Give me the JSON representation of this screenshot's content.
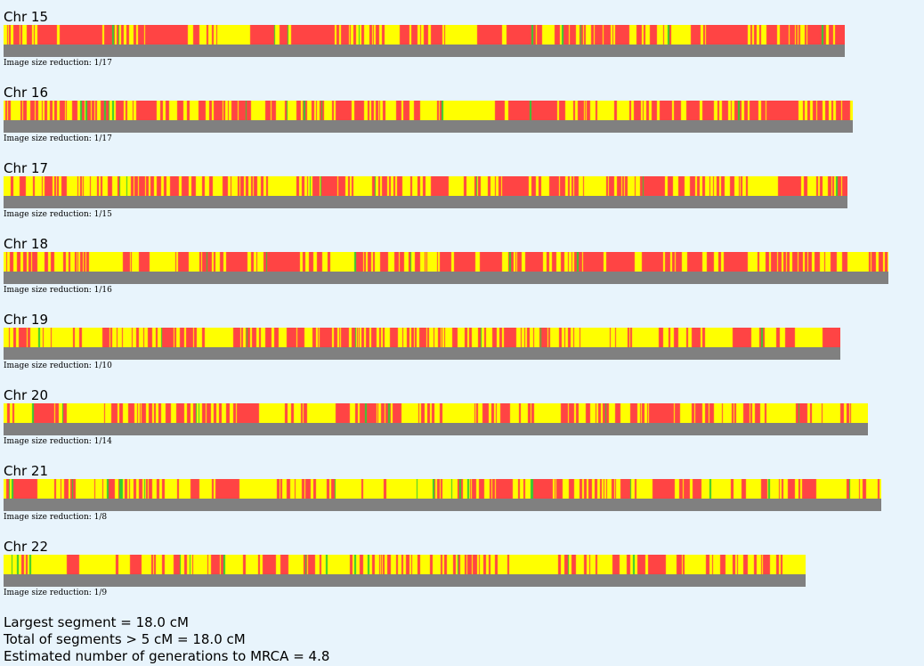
{
  "colors": {
    "background": "#e8f4fc",
    "red": "#ff4444",
    "yellow": "#ffff00",
    "green": "#33cc33",
    "baseline": "#808080"
  },
  "chromosomes": [
    {
      "label": "Chr 15",
      "reduction": "Image size reduction: 1/17"
    },
    {
      "label": "Chr 16",
      "reduction": "Image size reduction: 1/17"
    },
    {
      "label": "Chr 17",
      "reduction": "Image size reduction: 1/15"
    },
    {
      "label": "Chr 18",
      "reduction": "Image size reduction: 1/16"
    },
    {
      "label": "Chr 19",
      "reduction": "Image size reduction: 1/10"
    },
    {
      "label": "Chr 20",
      "reduction": "Image size reduction: 1/14"
    },
    {
      "label": "Chr 21",
      "reduction": "Image size reduction: 1/8"
    },
    {
      "label": "Chr 22",
      "reduction": "Image size reduction: 1/9"
    }
  ],
  "summary": {
    "largest_segment": "Largest segment = 18.0 cM",
    "total_segments": "Total of segments > 5 cM = 18.0 cM",
    "estimated_generations": "Estimated number of generations to MRCA = 4.8"
  }
}
